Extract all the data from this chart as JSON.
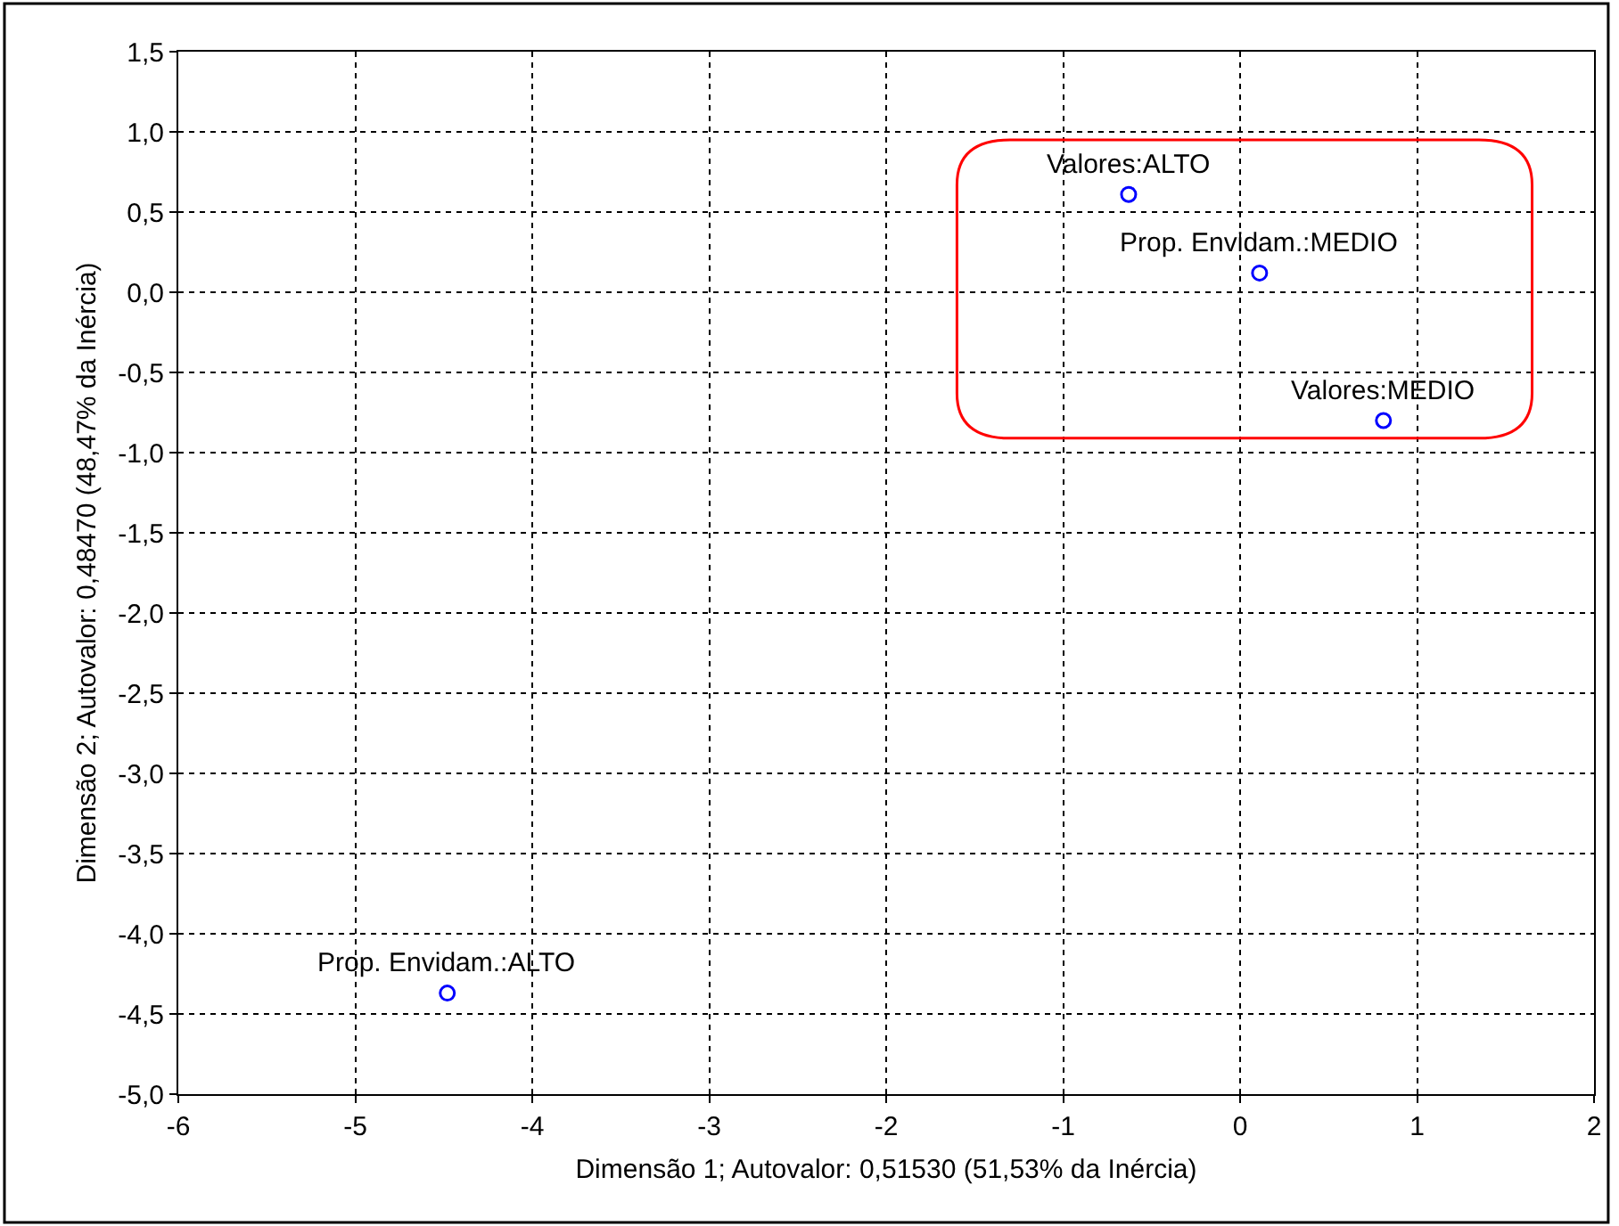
{
  "chart_data": {
    "type": "scatter",
    "xlabel": "Dimensão 1; Autovalor: 0,51530 (51,53% da Inércia)",
    "ylabel": "Dimensão 2; Autovalor: 0,48470 (48,47% da Inércia)",
    "series": [
      {
        "color": "#0000ff",
        "x": [
          -0.63,
          0.11,
          0.81,
          -4.48
        ],
        "values": [
          0.61,
          0.12,
          -0.8,
          -4.37
        ]
      }
    ],
    "annotations": [
      {
        "text": "Valores:ALTO",
        "x": -0.63,
        "y": 0.61
      },
      {
        "text": "Prop. Envidam.:MEDIO",
        "x": 0.11,
        "y": 0.12
      },
      {
        "text": "Valores:MEDIO",
        "x": 0.81,
        "y": -0.8
      },
      {
        "text": "Prop. Envidam.:ALTO",
        "x": -4.48,
        "y": -4.37
      }
    ],
    "xlim": [
      -6,
      2
    ],
    "xticks": [
      -6,
      -5,
      -4,
      -3,
      -2,
      -1,
      0,
      1,
      2
    ],
    "ylim": [
      -5,
      1.5
    ],
    "yticks": [
      {
        "value": 1.5,
        "label": "1,5"
      },
      {
        "value": 1.0,
        "label": "1,0"
      },
      {
        "value": 0.5,
        "label": "0,5"
      },
      {
        "value": 0,
        "label": "0,0"
      },
      {
        "value": -0.5,
        "label": "-0,5"
      },
      {
        "value": -1.0,
        "label": "-1,0"
      },
      {
        "value": -1.5,
        "label": "-1,5"
      },
      {
        "value": -2.0,
        "label": "-2,0"
      },
      {
        "value": -2.5,
        "label": "-2,5"
      },
      {
        "value": -3.0,
        "label": "-3,0"
      },
      {
        "value": -3.5,
        "label": "-3,5"
      },
      {
        "value": -4.0,
        "label": "-4,0"
      },
      {
        "value": -4.5,
        "label": "-4,5"
      },
      {
        "value": -5.0,
        "label": "-5,0"
      }
    ],
    "grid": true,
    "marker": "circle"
  }
}
